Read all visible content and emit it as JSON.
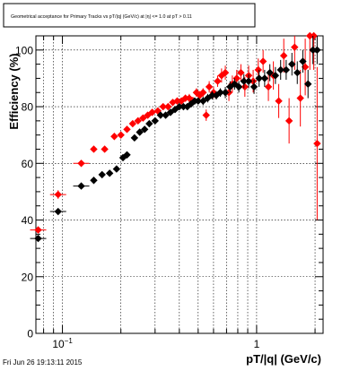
{
  "chart_data": {
    "type": "scatter",
    "title": "Geometrical acceptance for Primary Tracks vs pT/|q| (GeV/c) at |η| <= 1.0 at pT > 0.11",
    "xlabel": "pT/|q| (GeV/c)",
    "ylabel": "Efficiency (%)",
    "xscale": "log",
    "xlim": [
      0.073,
      2.2
    ],
    "ylim": [
      0,
      105
    ],
    "grid": true,
    "legend": "none",
    "x_ticks": [
      {
        "value": 0.1,
        "label": "10",
        "exp": "−1"
      },
      {
        "value": 1,
        "label": "1",
        "exp": ""
      }
    ],
    "y_ticks": [
      {
        "value": 0,
        "label": "0"
      },
      {
        "value": 20,
        "label": "20"
      },
      {
        "value": 40,
        "label": "40"
      },
      {
        "value": 60,
        "label": "60"
      },
      {
        "value": 80,
        "label": "80"
      },
      {
        "value": 100,
        "label": "100"
      }
    ],
    "series": [
      {
        "color": "#ff0000",
        "x": [
          0.075,
          0.095,
          0.125,
          0.145,
          0.165,
          0.185,
          0.2,
          0.215,
          0.23,
          0.245,
          0.26,
          0.275,
          0.29,
          0.31,
          0.33,
          0.35,
          0.37,
          0.39,
          0.41,
          0.43,
          0.45,
          0.47,
          0.49,
          0.51,
          0.53,
          0.55,
          0.57,
          0.6,
          0.63,
          0.66,
          0.69,
          0.72,
          0.75,
          0.79,
          0.83,
          0.87,
          0.91,
          0.96,
          1.02,
          1.08,
          1.15,
          1.22,
          1.3,
          1.38,
          1.47,
          1.57,
          1.68,
          1.78,
          1.88,
          1.97,
          2.05
        ],
        "y": [
          36.5,
          49,
          60,
          65,
          65,
          69.5,
          70,
          72,
          74,
          75,
          76,
          77,
          78,
          78.5,
          80,
          80,
          81.5,
          82,
          82,
          83,
          83,
          82,
          85,
          84,
          85,
          77,
          87,
          85,
          89,
          91,
          92,
          85,
          88,
          90,
          92,
          87,
          91,
          89,
          93,
          96,
          87,
          91,
          82,
          98,
          75,
          101,
          83,
          94,
          105,
          105,
          67
        ],
        "yerr": [
          1.2,
          1.5,
          1,
          1,
          1,
          1,
          1,
          1,
          1,
          1,
          1,
          1,
          1,
          1,
          1,
          1.2,
          1.2,
          1.2,
          1.2,
          1.2,
          1.5,
          1.5,
          1.5,
          1.5,
          1.5,
          2,
          2,
          2,
          2,
          2.5,
          2.5,
          3,
          3,
          3,
          3,
          3.5,
          3.5,
          4,
          4,
          4,
          5,
          5,
          6,
          6,
          8,
          8,
          10,
          10,
          12,
          12,
          27
        ]
      },
      {
        "color": "#000000",
        "x": [
          0.075,
          0.095,
          0.125,
          0.145,
          0.16,
          0.175,
          0.19,
          0.205,
          0.215,
          0.235,
          0.25,
          0.265,
          0.28,
          0.3,
          0.32,
          0.34,
          0.36,
          0.38,
          0.4,
          0.42,
          0.44,
          0.46,
          0.48,
          0.5,
          0.53,
          0.56,
          0.59,
          0.62,
          0.65,
          0.69,
          0.73,
          0.77,
          0.81,
          0.86,
          0.91,
          0.97,
          1.03,
          1.1,
          1.17,
          1.25,
          1.33,
          1.42,
          1.52,
          1.62,
          1.73,
          1.84,
          1.95,
          2.05
        ],
        "y": [
          33.5,
          43,
          52,
          54,
          56,
          56.5,
          58,
          62,
          63,
          69,
          71,
          72,
          74,
          75,
          77,
          77,
          78,
          79,
          80,
          80,
          80,
          81,
          82,
          82,
          82,
          83,
          84,
          84,
          85,
          85,
          87,
          88,
          87,
          89,
          89,
          87,
          90,
          90,
          92,
          91,
          93,
          93,
          95,
          92,
          96,
          88,
          100,
          100
        ],
        "yerr": [
          1,
          1,
          1,
          1,
          1,
          1,
          1,
          1,
          1,
          1,
          1,
          1,
          1,
          1,
          1,
          1,
          1,
          1,
          1,
          1,
          1,
          1,
          1,
          1,
          1.5,
          1.5,
          1.5,
          1.5,
          1.5,
          2,
          2,
          2,
          2,
          2.5,
          2.5,
          2.5,
          3,
          3,
          3,
          3,
          3.5,
          3.5,
          4,
          4,
          4,
          5,
          5,
          5
        ]
      }
    ]
  },
  "footer": {
    "timestamp": "Fri Jun 26 19:13:11 2015"
  }
}
